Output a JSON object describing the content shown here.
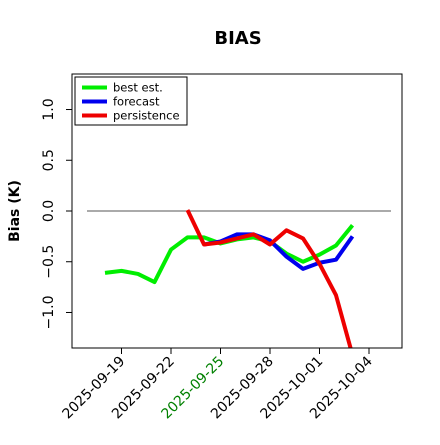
{
  "chart_data": {
    "type": "line",
    "title": "BIAS",
    "xlabel": "",
    "ylabel": "Bias (K)",
    "x_axis": {
      "type": "date",
      "range": [
        "2025-09-16",
        "2025-10-06"
      ],
      "ticks": [
        "2025-09-19",
        "2025-09-22",
        "2025-09-25",
        "2025-09-28",
        "2025-10-01",
        "2025-10-04"
      ],
      "highlighted_tick": "2025-09-25",
      "highlight_color": "#008000"
    },
    "y_axis": {
      "range": [
        -1.35,
        1.35
      ],
      "ticks": [
        1.0,
        0.5,
        0.0,
        -0.5,
        -1.0
      ],
      "tick_labels": [
        "1.0",
        "0.5",
        "0.0",
        "−0.5",
        "−1.0"
      ]
    },
    "grid": false,
    "legend": {
      "placement": "top-left"
    },
    "reference_line": {
      "y": 0.0,
      "color": "#555555"
    },
    "series": [
      {
        "name": "best est.",
        "color": "#00ee00",
        "points": [
          [
            "2025-09-18",
            -0.61
          ],
          [
            "2025-09-19",
            -0.59
          ],
          [
            "2025-09-20",
            -0.62
          ],
          [
            "2025-09-21",
            -0.7
          ],
          [
            "2025-09-22",
            -0.38
          ],
          [
            "2025-09-23",
            -0.26
          ],
          [
            "2025-09-24",
            -0.26
          ],
          [
            "2025-09-25",
            -0.32
          ],
          [
            "2025-09-26",
            -0.28
          ],
          [
            "2025-09-27",
            -0.26
          ],
          [
            "2025-09-28",
            -0.3
          ],
          [
            "2025-09-29",
            -0.42
          ],
          [
            "2025-09-30",
            -0.5
          ],
          [
            "2025-10-01",
            -0.43
          ],
          [
            "2025-10-02",
            -0.34
          ],
          [
            "2025-10-03",
            -0.14
          ]
        ]
      },
      {
        "name": "forecast",
        "color": "#0000ee",
        "points": [
          [
            "2025-09-24",
            -0.33
          ],
          [
            "2025-09-25",
            -0.3
          ],
          [
            "2025-09-26",
            -0.23
          ],
          [
            "2025-09-27",
            -0.23
          ],
          [
            "2025-09-28",
            -0.29
          ],
          [
            "2025-09-29",
            -0.45
          ],
          [
            "2025-09-30",
            -0.57
          ],
          [
            "2025-10-01",
            -0.51
          ],
          [
            "2025-10-02",
            -0.48
          ],
          [
            "2025-10-03",
            -0.25
          ]
        ]
      },
      {
        "name": "persistence",
        "color": "#ee0000",
        "points": [
          [
            "2025-09-23",
            0.01
          ],
          [
            "2025-09-24",
            -0.33
          ],
          [
            "2025-09-25",
            -0.31
          ],
          [
            "2025-09-26",
            -0.27
          ],
          [
            "2025-09-27",
            -0.23
          ],
          [
            "2025-09-28",
            -0.33
          ],
          [
            "2025-09-29",
            -0.19
          ],
          [
            "2025-09-30",
            -0.27
          ],
          [
            "2025-10-01",
            -0.52
          ],
          [
            "2025-10-02",
            -0.83
          ],
          [
            "2025-10-03",
            -1.42
          ]
        ]
      }
    ]
  }
}
